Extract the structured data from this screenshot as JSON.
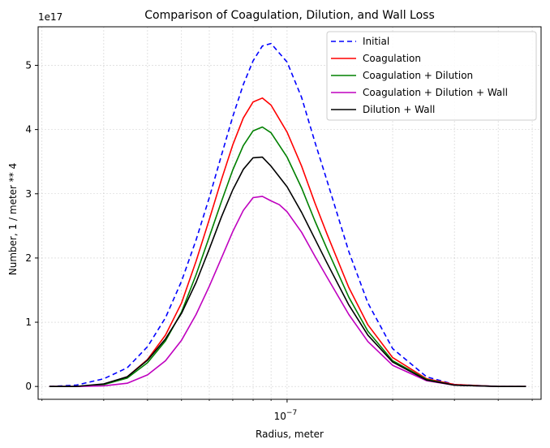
{
  "chart_data": {
    "type": "line",
    "title": "Comparison of Coagulation, Dilution, and Wall Loss",
    "xlabel": "Radius, meter",
    "ylabel": "Number, 1 / meter ** 4",
    "y_offset_label": "1e17",
    "xscale": "log",
    "xlim": [
      1.95e-08,
      5.3e-07
    ],
    "ylim": [
      -0.2,
      5.6
    ],
    "y_multiplier": 1e+17,
    "xticks": [
      {
        "value": 1e-07,
        "base": "10",
        "exp": "−7"
      }
    ],
    "yticks": [
      "0",
      "1",
      "2",
      "3",
      "4",
      "5"
    ],
    "grid": true,
    "legend_position": "top-right",
    "series": [
      {
        "name": "Initial",
        "color": "#0000ff",
        "dash": "6,4",
        "x": [
          2.1e-08,
          2.5e-08,
          3e-08,
          3.5e-08,
          4e-08,
          4.5e-08,
          5e-08,
          5.5e-08,
          6e-08,
          6.5e-08,
          7e-08,
          7.5e-08,
          8e-08,
          8.5e-08,
          9e-08,
          1e-07,
          1.1e-07,
          1.2e-07,
          1.3e-07,
          1.5e-07,
          1.7e-07,
          2e-07,
          2.5e-07,
          3e-07,
          4e-07,
          4.8e-07
        ],
        "y": [
          0.0,
          0.02,
          0.12,
          0.29,
          0.62,
          1.07,
          1.64,
          2.28,
          2.94,
          3.6,
          4.2,
          4.7,
          5.07,
          5.3,
          5.34,
          5.05,
          4.5,
          3.81,
          3.2,
          2.1,
          1.3,
          0.59,
          0.15,
          0.03,
          0.0,
          0.0
        ]
      },
      {
        "name": "Coagulation",
        "color": "#ff0000",
        "dash": "",
        "x": [
          2.1e-08,
          2.5e-08,
          3e-08,
          3.5e-08,
          4e-08,
          4.5e-08,
          5e-08,
          5.5e-08,
          6e-08,
          6.5e-08,
          7e-08,
          7.5e-08,
          8e-08,
          8.5e-08,
          9e-08,
          1e-07,
          1.1e-07,
          1.2e-07,
          1.3e-07,
          1.5e-07,
          1.7e-07,
          2e-07,
          2.5e-07,
          3e-07,
          4e-07,
          4.8e-07
        ],
        "y": [
          0.0,
          0.0,
          0.03,
          0.15,
          0.42,
          0.8,
          1.3,
          1.95,
          2.6,
          3.22,
          3.76,
          4.18,
          4.43,
          4.49,
          4.38,
          3.96,
          3.43,
          2.86,
          2.37,
          1.54,
          0.96,
          0.45,
          0.12,
          0.03,
          0.0,
          0.0
        ]
      },
      {
        "name": "Coagulation + Dilution",
        "color": "#008000",
        "dash": "",
        "x": [
          2.1e-08,
          2.5e-08,
          3e-08,
          3.5e-08,
          4e-08,
          4.5e-08,
          5e-08,
          5.5e-08,
          6e-08,
          6.5e-08,
          7e-08,
          7.5e-08,
          8e-08,
          8.5e-08,
          9e-08,
          1e-07,
          1.1e-07,
          1.2e-07,
          1.3e-07,
          1.5e-07,
          1.7e-07,
          2e-07,
          2.5e-07,
          3e-07,
          4e-07,
          4.8e-07
        ],
        "y": [
          0.0,
          0.0,
          0.03,
          0.13,
          0.37,
          0.71,
          1.16,
          1.74,
          2.33,
          2.88,
          3.37,
          3.75,
          3.98,
          4.04,
          3.95,
          3.57,
          3.09,
          2.58,
          2.14,
          1.39,
          0.86,
          0.4,
          0.11,
          0.02,
          0.0,
          0.0
        ]
      },
      {
        "name": "Coagulation + Dilution + Wall",
        "color": "#bf00bf",
        "dash": "",
        "x": [
          2.1e-08,
          2.5e-08,
          3e-08,
          3.5e-08,
          4e-08,
          4.5e-08,
          5e-08,
          5.5e-08,
          6e-08,
          6.5e-08,
          7e-08,
          7.5e-08,
          8e-08,
          8.5e-08,
          9e-08,
          9.5e-08,
          1e-07,
          1.1e-07,
          1.2e-07,
          1.3e-07,
          1.5e-07,
          1.7e-07,
          2e-07,
          2.5e-07,
          3e-07,
          4e-07,
          4.8e-07
        ],
        "y": [
          0.0,
          0.0,
          0.01,
          0.05,
          0.18,
          0.4,
          0.72,
          1.12,
          1.56,
          2.0,
          2.41,
          2.74,
          2.94,
          2.96,
          2.89,
          2.83,
          2.72,
          2.4,
          2.03,
          1.7,
          1.12,
          0.7,
          0.33,
          0.09,
          0.02,
          0.0,
          0.0
        ]
      },
      {
        "name": "Dilution + Wall",
        "color": "#000000",
        "dash": "",
        "x": [
          2.1e-08,
          2.5e-08,
          3e-08,
          3.5e-08,
          4e-08,
          4.5e-08,
          5e-08,
          5.5e-08,
          6e-08,
          6.5e-08,
          7e-08,
          7.5e-08,
          8e-08,
          8.5e-08,
          9e-08,
          1e-07,
          1.1e-07,
          1.2e-07,
          1.3e-07,
          1.5e-07,
          1.7e-07,
          2e-07,
          2.5e-07,
          3e-07,
          4e-07,
          4.8e-07
        ],
        "y": [
          0.0,
          0.0,
          0.04,
          0.15,
          0.41,
          0.74,
          1.14,
          1.62,
          2.14,
          2.64,
          3.06,
          3.38,
          3.56,
          3.57,
          3.43,
          3.11,
          2.71,
          2.3,
          1.92,
          1.27,
          0.8,
          0.38,
          0.1,
          0.02,
          0.0,
          0.0
        ]
      }
    ]
  }
}
